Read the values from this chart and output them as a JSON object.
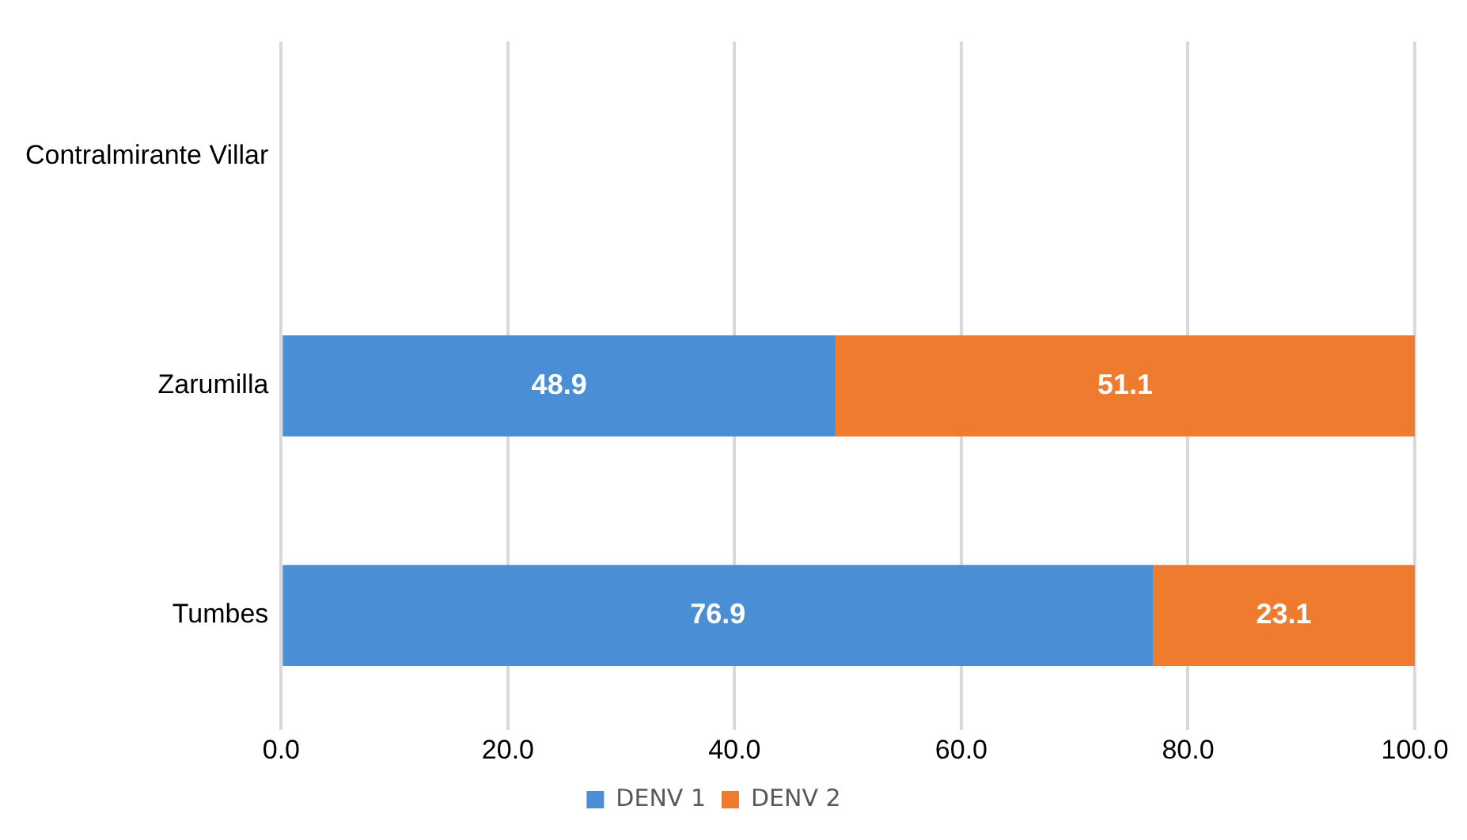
{
  "chart_data": {
    "type": "bar",
    "orientation": "horizontal",
    "stacked": true,
    "categories": [
      "Contralmirante Villar",
      "Zarumilla",
      "Tumbes"
    ],
    "series": [
      {
        "name": "DENV 1",
        "color": "#4a8fd6",
        "values": [
          0,
          48.9,
          76.9
        ],
        "value_labels": [
          null,
          "48.9",
          "76.9"
        ]
      },
      {
        "name": "DENV 2",
        "color": "#ef7b2f",
        "values": [
          0,
          51.1,
          23.1
        ],
        "value_labels": [
          null,
          "51.1",
          "23.1"
        ]
      }
    ],
    "xlim": [
      0,
      100
    ],
    "xticks": [
      {
        "value": 0,
        "label": "0.0"
      },
      {
        "value": 20,
        "label": "20.0"
      },
      {
        "value": 40,
        "label": "40.0"
      },
      {
        "value": 60,
        "label": "60.0"
      },
      {
        "value": 80,
        "label": "80.0"
      },
      {
        "value": 100,
        "label": "100.0"
      }
    ],
    "grid": "x",
    "legend": "bottom"
  }
}
